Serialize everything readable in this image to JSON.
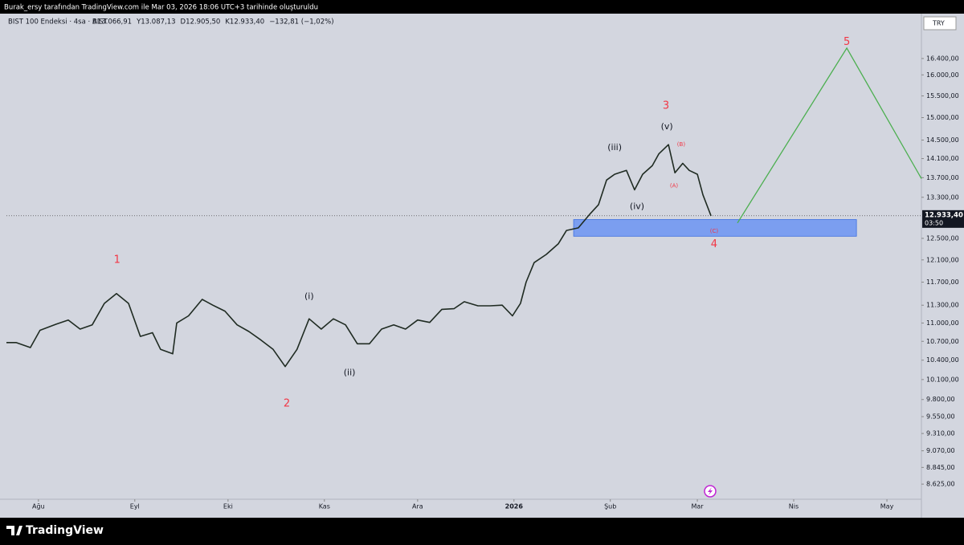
{
  "header": {
    "credit": "Burak_ersy tarafından TradingView.com ile Mar 03, 2026 18:06 UTC+3 tarihinde oluşturuldu"
  },
  "legend": {
    "symbol": "BIST 100 Endeksi · 4sa · BIST",
    "ohlc": [
      "A13.066,91",
      "Y13.087,13",
      "D12.905,50",
      "K12.933,40"
    ],
    "change": "−132,81 (−1,02%)"
  },
  "currency": "TRY",
  "brand": "TradingView",
  "chart_data": {
    "type": "line",
    "log_scale": true,
    "color": "#1f2b22",
    "xlim": [
      -10.3,
      284.1
    ],
    "ylim": [
      8430,
      17150
    ],
    "xticks": [
      {
        "value": 0,
        "label": "Ağu"
      },
      {
        "value": 31,
        "label": "Eyl"
      },
      {
        "value": 61,
        "label": "Eki"
      },
      {
        "value": 92,
        "label": "Kas"
      },
      {
        "value": 122,
        "label": "Ara"
      },
      {
        "value": 153,
        "label": "2026"
      },
      {
        "value": 184,
        "label": "Şub"
      },
      {
        "value": 212,
        "label": "Mar"
      },
      {
        "value": 243,
        "label": "Nis"
      },
      {
        "value": 273,
        "label": "May"
      }
    ],
    "yticks": [
      {
        "value": 16400,
        "label": "16.400,00"
      },
      {
        "value": 16000,
        "label": "16.000,00"
      },
      {
        "value": 15500,
        "label": "15.500,00"
      },
      {
        "value": 15000,
        "label": "15.000,00"
      },
      {
        "value": 14500,
        "label": "14.500,00"
      },
      {
        "value": 14100,
        "label": "14.100,00"
      },
      {
        "value": 13700,
        "label": "13.700,00"
      },
      {
        "value": 13300,
        "label": "13.300,00"
      },
      {
        "value": 12500,
        "label": "12.500,00"
      },
      {
        "value": 12100,
        "label": "12.100,00"
      },
      {
        "value": 11700,
        "label": "11.700,00"
      },
      {
        "value": 11300,
        "label": "11.300,00"
      },
      {
        "value": 11000,
        "label": "11.000,00"
      },
      {
        "value": 10700,
        "label": "10.700,00"
      },
      {
        "value": 10400,
        "label": "10.400,00"
      },
      {
        "value": 10100,
        "label": "10.100,00"
      },
      {
        "value": 9800,
        "label": "9.800,00"
      },
      {
        "value": 9550,
        "label": "9.550,00"
      },
      {
        "value": 9310,
        "label": "9.310,00"
      },
      {
        "value": 9070,
        "label": "9.070,00"
      },
      {
        "value": 8845,
        "label": "8.845,00"
      },
      {
        "value": 8625,
        "label": "8.625,00"
      }
    ],
    "x": [
      -10.3,
      -7.2,
      -2.6,
      0.5,
      5.7,
      9.6,
      13.4,
      17.3,
      21.2,
      25.1,
      29.0,
      32.8,
      36.7,
      39.3,
      43.2,
      44.5,
      48.3,
      52.7,
      56.1,
      60.0,
      63.9,
      67.7,
      71.6,
      75.5,
      79.4,
      83.2,
      87.1,
      91.0,
      94.9,
      98.8,
      102.6,
      106.5,
      110.4,
      114.3,
      118.1,
      122.0,
      125.9,
      129.8,
      133.7,
      137.0,
      141.4,
      145.3,
      149.2,
      152.5,
      155.1,
      156.9,
      159.5,
      163.4,
      167.3,
      169.9,
      173.7,
      177.6,
      180.2,
      182.8,
      185.4,
      189.2,
      191.8,
      194.4,
      197.5,
      199.6,
      202.7,
      204.8,
      207.3,
      209.4,
      212.0,
      213.8,
      216.4
    ],
    "values": [
      10680,
      10680,
      10600,
      10880,
      10980,
      11050,
      10900,
      10970,
      11330,
      11500,
      11330,
      10780,
      10840,
      10570,
      10500,
      11000,
      11120,
      11400,
      11300,
      11200,
      10970,
      10860,
      10720,
      10570,
      10300,
      10570,
      11070,
      10900,
      11070,
      10970,
      10660,
      10660,
      10900,
      10970,
      10900,
      11050,
      11010,
      11230,
      11240,
      11360,
      11290,
      11290,
      11300,
      11120,
      11330,
      11700,
      12050,
      12200,
      12400,
      12650,
      12700,
      12980,
      13150,
      13650,
      13770,
      13850,
      13450,
      13770,
      13950,
      14200,
      14400,
      13800,
      14000,
      13850,
      13770,
      13350,
      12933
    ],
    "last_price": {
      "value": 12933.4,
      "label": "12.933,40"
    },
    "countdown": "03:50",
    "projection": {
      "color": "#4caf50",
      "x": [
        224.9,
        260.1,
        284.1
      ],
      "values": [
        12793,
        16660,
        13680
      ]
    },
    "zone": {
      "color": "#7b9ef0",
      "x": [
        172.2,
        263.2
      ],
      "values": [
        12860,
        12540
      ]
    },
    "annotations": [
      {
        "text": "1",
        "x": 25.3,
        "y": 12100,
        "color": "#f23645"
      },
      {
        "text": "2",
        "x": 79.9,
        "y": 9740,
        "color": "#f23645"
      },
      {
        "text": "3",
        "x": 201.9,
        "y": 15270,
        "color": "#f23645"
      },
      {
        "text": "4",
        "x": 217.4,
        "y": 12385,
        "color": "#f23645"
      },
      {
        "text": "5",
        "x": 260.1,
        "y": 16810,
        "color": "#f23645"
      },
      {
        "text": "(i)",
        "x": 87.1,
        "y": 11450,
        "color": "#131722"
      },
      {
        "text": "(ii)",
        "x": 100.1,
        "y": 10200,
        "color": "#131722"
      },
      {
        "text": "(iii)",
        "x": 185.4,
        "y": 14330,
        "color": "#131722"
      },
      {
        "text": "(iv)",
        "x": 192.6,
        "y": 13110,
        "color": "#131722"
      },
      {
        "text": "(v)",
        "x": 202.2,
        "y": 14790,
        "color": "#131722"
      },
      {
        "text": "(A)",
        "x": 204.5,
        "y": 13530,
        "color": "#f23645"
      },
      {
        "text": "(B)",
        "x": 206.8,
        "y": 14400,
        "color": "#f23645"
      },
      {
        "text": "(C)",
        "x": 217.4,
        "y": 12640,
        "color": "#f23645"
      }
    ]
  }
}
